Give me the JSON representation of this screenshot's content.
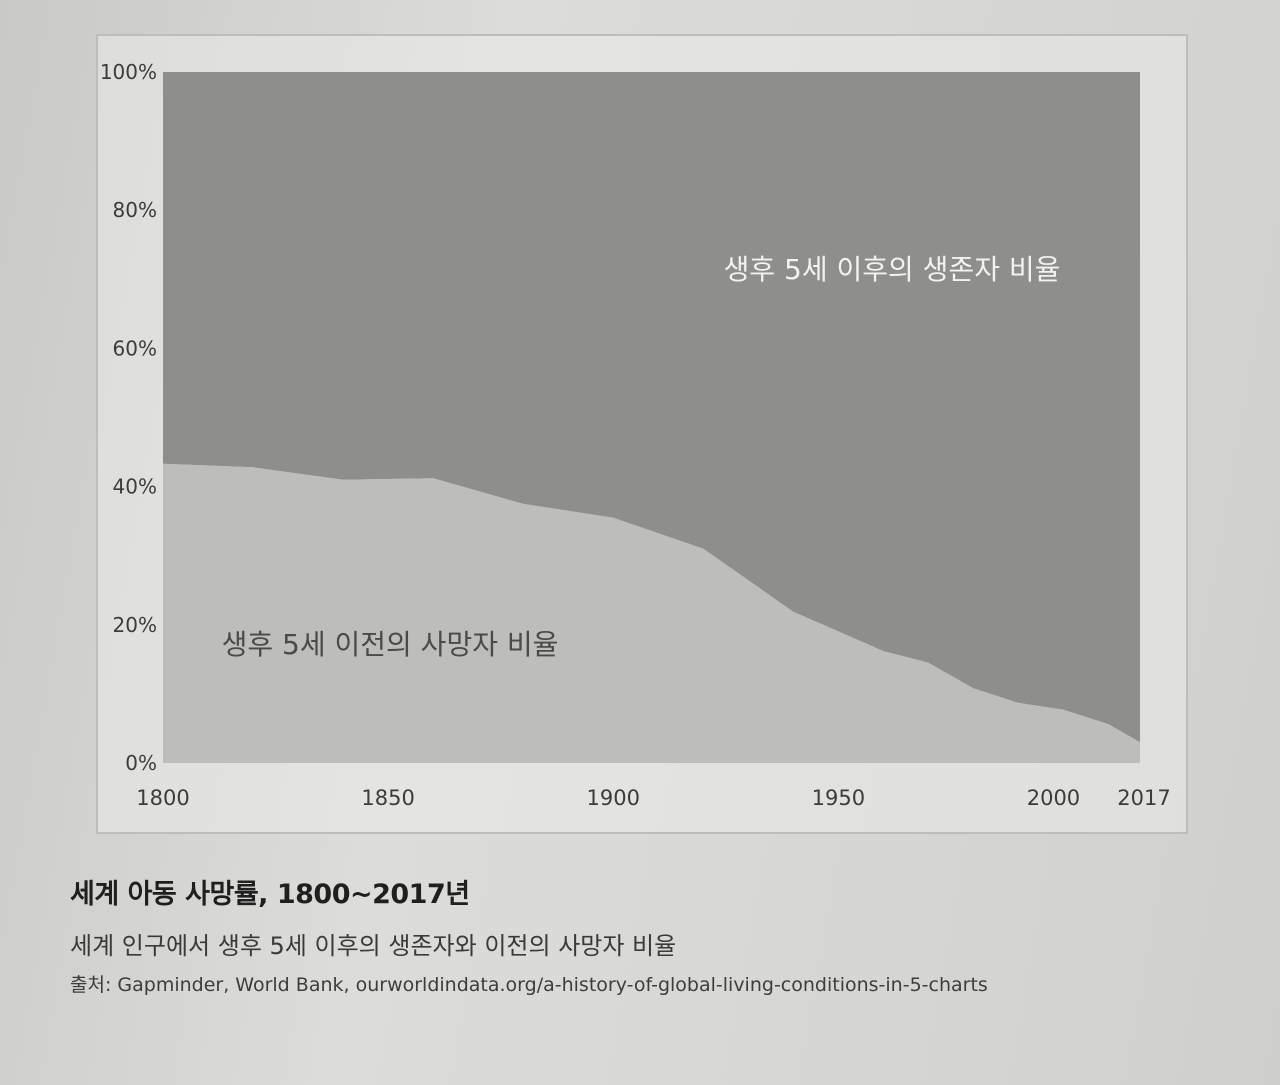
{
  "caption": {
    "title": "세계 아동 사망률, 1800~2017년",
    "subtitle": "세계 인구에서 생후 5세 이후의 생존자와 이전의 사망자 비율",
    "source": "출처: Gapminder, World Bank, ourworldindata.org/a-history-of-global-living-conditions-in-5-charts"
  },
  "colors": {
    "survived": "#8e8e8c",
    "died": "#bdbdba",
    "area_label_light": "#f2f2f0",
    "area_label_dark": "#4a4a4a",
    "tick_text": "#3c3c3c"
  },
  "chart_data": {
    "type": "area",
    "stacked": true,
    "x": [
      1800,
      1820,
      1840,
      1860,
      1880,
      1900,
      1920,
      1940,
      1960,
      1970,
      1980,
      1990,
      2000,
      2010,
      2017
    ],
    "series": [
      {
        "name": "생후 5세 이전의 사망자 비율",
        "values": [
          43.3,
          42.8,
          41.0,
          41.2,
          37.5,
          35.5,
          31.0,
          21.9,
          16.2,
          14.5,
          10.8,
          8.7,
          7.7,
          5.6,
          3.0
        ]
      },
      {
        "name": "생후 5세 이후의 생존자 비율",
        "values": [
          56.7,
          57.2,
          59.0,
          58.8,
          62.5,
          64.5,
          69.0,
          78.1,
          83.8,
          85.5,
          89.2,
          91.3,
          92.3,
          94.4,
          97.0
        ]
      }
    ],
    "y_ticks": [
      "0%",
      "20%",
      "40%",
      "60%",
      "80%",
      "100%"
    ],
    "y_tick_values": [
      0,
      20,
      40,
      60,
      80,
      100
    ],
    "x_ticks": [
      "1800",
      "1850",
      "1900",
      "1950",
      "2000",
      "2017"
    ],
    "x_tick_values": [
      1800,
      1850,
      1900,
      1950,
      2000,
      2017
    ],
    "xlim": [
      1800,
      2017
    ],
    "ylim": [
      0,
      100
    ],
    "grid": false
  }
}
